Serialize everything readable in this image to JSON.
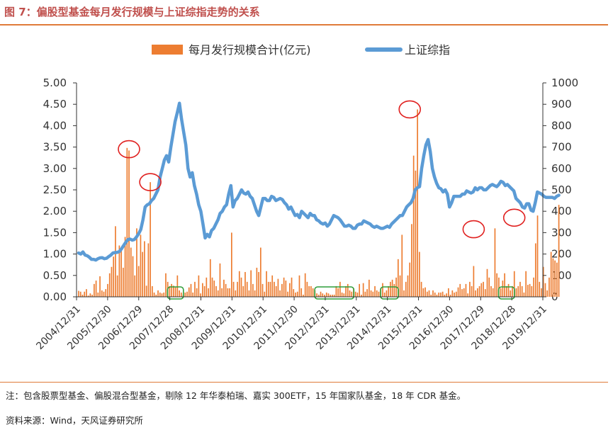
{
  "figure": {
    "title": "图 7：偏股型基金每月发行规模与上证综指走势的关系",
    "note": "注：包含股票型基金、偏股混合型基金，剔除 12 年华泰柏瑞、嘉实 300ETF，15 年国家队基金，18 年 CDR 基金。",
    "source": "资料来源：Wind，天风证券研究所"
  },
  "chart_data": {
    "type": "bar+line",
    "legend": [
      "每月发行规模合计(亿元)",
      "上证综指"
    ],
    "legend_position": "top-center",
    "colors": {
      "bars": "#ed7d31",
      "line": "#5b9bd5",
      "circle": "#e0201f",
      "box": "#2e9e3a",
      "accent": "#e07b39"
    },
    "y_left": {
      "min": 0,
      "max": 5,
      "ticks": [
        "0.00",
        "0.50",
        "1.00",
        "1.50",
        "2.00",
        "2.50",
        "3.00",
        "3.50",
        "4.00",
        "4.50",
        "5.00"
      ]
    },
    "y_right": {
      "min": 0,
      "max": 1000,
      "ticks": [
        "0",
        "100",
        "200",
        "300",
        "400",
        "500",
        "600",
        "700",
        "800",
        "900",
        "1000"
      ]
    },
    "x_ticks": [
      "2004/12/31",
      "2005/12/30",
      "2006/12/29",
      "2007/12/28",
      "2008/12/31",
      "2009/12/31",
      "2010/12/31",
      "2011/12/30",
      "2012/12/31",
      "2013/12/31",
      "2014/12/31",
      "2015/12/31",
      "2016/12/30",
      "2017/12/29",
      "2018/12/28",
      "2019/12/31"
    ],
    "start_month": "2005-01",
    "bars_values": [
      0.14,
      0.12,
      0.05,
      0.12,
      0.18,
      0.03,
      0.08,
      0.05,
      0.3,
      0.38,
      0.1,
      0.48,
      0.15,
      0.12,
      0.18,
      0.3,
      0.55,
      0.7,
      0.94,
      1.65,
      0.5,
      1.2,
      1.08,
      0.68,
      1.4,
      3.48,
      3.42,
      1.15,
      0.95,
      0.5,
      1.6,
      0.72,
      1.45,
      1.05,
      1.3,
      0.26,
      1.25,
      2.68,
      0.25,
      0.1,
      0.05,
      0.15,
      0.1,
      0.08,
      0.1,
      0.55,
      0.35,
      0.25,
      0.3,
      0.26,
      0.22,
      0.5,
      0.15,
      0.1,
      0.05,
      0.1,
      0.12,
      0.22,
      0.3,
      0.1,
      0.35,
      0.2,
      0.5,
      0.08,
      0.32,
      0.25,
      0.45,
      0.2,
      0.88,
      0.45,
      0.38,
      0.25,
      0.15,
      0.78,
      0.2,
      0.4,
      0.3,
      0.2,
      0.2,
      1.5,
      0.35,
      0.15,
      0.35,
      0.6,
      0.45,
      0.25,
      0.58,
      0.35,
      0.15,
      0.62,
      0.3,
      0.15,
      0.68,
      0.58,
      1.15,
      0.3,
      0.12,
      0.6,
      0.35,
      0.35,
      0.5,
      0.35,
      0.25,
      0.42,
      0.15,
      0.3,
      0.45,
      0.38,
      0.12,
      0.32,
      0.45,
      0.18,
      0.1,
      0.12,
      0.5,
      0.2,
      0.05,
      0.55,
      0.35,
      0.25,
      0.25,
      0.2,
      0.15,
      0.08,
      0.05,
      0.12,
      0.08,
      0.05,
      0.1,
      0.08,
      0.05,
      0.05,
      0.05,
      0.25,
      0.2,
      0.35,
      0.1,
      0.08,
      0.25,
      0.3,
      0.15,
      0.12,
      0.2,
      0.12,
      0.1,
      0.3,
      0.05,
      0.32,
      0.12,
      0.18,
      0.4,
      0.15,
      0.12,
      0.25,
      0.15,
      0.12,
      0.2,
      0.32,
      0.1,
      0.15,
      0.25,
      0.35,
      0.4,
      0.3,
      0.45,
      0.88,
      0.5,
      1.45,
      0.15,
      0.35,
      0.5,
      0.8,
      1.7,
      3.3,
      2.95,
      4.38,
      1.05,
      0.35,
      0.2,
      0.22,
      0.12,
      0.15,
      0.05,
      0.15,
      0.1,
      0.05,
      0.1,
      0.1,
      0.12,
      0.05,
      0.08,
      0.2,
      0.05,
      0.15,
      0.1,
      0.12,
      0.22,
      0.3,
      0.18,
      0.2,
      0.3,
      0.08,
      0.35,
      0.25,
      0.72,
      0.15,
      0.2,
      0.25,
      0.32,
      0.35,
      0.18,
      0.65,
      0.45,
      0.25,
      0.2,
      1.6,
      0.55,
      0.45,
      0.2,
      0.38,
      0.55,
      0.25,
      0.3,
      0.15,
      0.25,
      0.6,
      0.2,
      0.25,
      0.35,
      0.25,
      0.1,
      0.6,
      0.28,
      0.3,
      0.25,
      0.45,
      1.25,
      1.9,
      0.35,
      0.2,
      0.7,
      0.32,
      0.15,
      0.45,
      1.05,
      0.9,
      0.85,
      0.8,
      2.15
    ],
    "line_points": [
      [
        0,
        205
      ],
      [
        1,
        200
      ],
      [
        2,
        210
      ],
      [
        3,
        195
      ],
      [
        4,
        192
      ],
      [
        5,
        185
      ],
      [
        6,
        175
      ],
      [
        7,
        175
      ],
      [
        8,
        172
      ],
      [
        9,
        178
      ],
      [
        10,
        182
      ],
      [
        11,
        183
      ],
      [
        12,
        178
      ],
      [
        13,
        180
      ],
      [
        14,
        188
      ],
      [
        15,
        195
      ],
      [
        16,
        205
      ],
      [
        17,
        207
      ],
      [
        18,
        208
      ],
      [
        19,
        212
      ],
      [
        20,
        225
      ],
      [
        21,
        240
      ],
      [
        22,
        255
      ],
      [
        23,
        268
      ],
      [
        24,
        270
      ],
      [
        25,
        265
      ],
      [
        26,
        268
      ],
      [
        27,
        280
      ],
      [
        28,
        295
      ],
      [
        29,
        315
      ],
      [
        30,
        360
      ],
      [
        31,
        420
      ],
      [
        32,
        430
      ],
      [
        33,
        435
      ],
      [
        34,
        450
      ],
      [
        35,
        460
      ],
      [
        36,
        480
      ],
      [
        37,
        500
      ],
      [
        38,
        560
      ],
      [
        39,
        600
      ],
      [
        40,
        640
      ],
      [
        41,
        660
      ],
      [
        42,
        630
      ],
      [
        43,
        700
      ],
      [
        44,
        760
      ],
      [
        45,
        820
      ],
      [
        46,
        860
      ],
      [
        47,
        905
      ],
      [
        48,
        830
      ],
      [
        49,
        770
      ],
      [
        50,
        710
      ],
      [
        51,
        600
      ],
      [
        52,
        560
      ],
      [
        53,
        580
      ],
      [
        54,
        520
      ],
      [
        55,
        480
      ],
      [
        56,
        430
      ],
      [
        57,
        400
      ],
      [
        58,
        340
      ],
      [
        59,
        275
      ],
      [
        60,
        292
      ],
      [
        61,
        280
      ],
      [
        62,
        310
      ],
      [
        63,
        320
      ],
      [
        64,
        340
      ],
      [
        65,
        360
      ],
      [
        66,
        390
      ],
      [
        67,
        400
      ],
      [
        68,
        420
      ],
      [
        69,
        430
      ],
      [
        70,
        480
      ],
      [
        71,
        520
      ],
      [
        72,
        420
      ],
      [
        73,
        450
      ],
      [
        74,
        460
      ],
      [
        75,
        480
      ],
      [
        76,
        500
      ],
      [
        77,
        485
      ],
      [
        78,
        480
      ],
      [
        79,
        490
      ],
      [
        80,
        470
      ],
      [
        81,
        460
      ],
      [
        82,
        430
      ],
      [
        83,
        400
      ],
      [
        84,
        380
      ],
      [
        85,
        420
      ],
      [
        86,
        460
      ],
      [
        87,
        460
      ],
      [
        88,
        450
      ],
      [
        89,
        450
      ],
      [
        90,
        470
      ],
      [
        91,
        465
      ],
      [
        92,
        450
      ],
      [
        93,
        455
      ],
      [
        94,
        460
      ],
      [
        95,
        455
      ],
      [
        96,
        440
      ],
      [
        97,
        430
      ],
      [
        98,
        410
      ],
      [
        99,
        420
      ],
      [
        100,
        400
      ],
      [
        101,
        380
      ],
      [
        102,
        385
      ],
      [
        103,
        370
      ],
      [
        104,
        400
      ],
      [
        105,
        390
      ],
      [
        106,
        380
      ],
      [
        107,
        370
      ],
      [
        108,
        390
      ],
      [
        109,
        380
      ],
      [
        110,
        380
      ],
      [
        111,
        360
      ],
      [
        112,
        355
      ],
      [
        113,
        345
      ],
      [
        114,
        340
      ],
      [
        115,
        345
      ],
      [
        116,
        330
      ],
      [
        117,
        340
      ],
      [
        118,
        360
      ],
      [
        119,
        380
      ],
      [
        120,
        375
      ],
      [
        121,
        370
      ],
      [
        122,
        360
      ],
      [
        123,
        345
      ],
      [
        124,
        330
      ],
      [
        125,
        330
      ],
      [
        126,
        335
      ],
      [
        127,
        330
      ],
      [
        128,
        320
      ],
      [
        129,
        320
      ],
      [
        130,
        335
      ],
      [
        131,
        340
      ],
      [
        132,
        340
      ],
      [
        133,
        355
      ],
      [
        134,
        350
      ],
      [
        135,
        345
      ],
      [
        136,
        340
      ],
      [
        137,
        330
      ],
      [
        138,
        325
      ],
      [
        139,
        330
      ],
      [
        140,
        325
      ],
      [
        141,
        320
      ],
      [
        142,
        320
      ],
      [
        143,
        325
      ],
      [
        144,
        330
      ],
      [
        145,
        325
      ],
      [
        146,
        340
      ],
      [
        147,
        350
      ],
      [
        148,
        360
      ],
      [
        149,
        370
      ],
      [
        150,
        380
      ],
      [
        151,
        380
      ],
      [
        152,
        400
      ],
      [
        153,
        420
      ],
      [
        154,
        430
      ],
      [
        155,
        440
      ],
      [
        156,
        460
      ],
      [
        157,
        500
      ],
      [
        158,
        510
      ],
      [
        159,
        515
      ],
      [
        160,
        600
      ],
      [
        161,
        660
      ],
      [
        162,
        710
      ],
      [
        163,
        735
      ],
      [
        164,
        680
      ],
      [
        165,
        600
      ],
      [
        166,
        560
      ],
      [
        167,
        530
      ],
      [
        168,
        510
      ],
      [
        169,
        505
      ],
      [
        170,
        490
      ],
      [
        171,
        500
      ],
      [
        172,
        480
      ],
      [
        173,
        420
      ],
      [
        174,
        440
      ],
      [
        175,
        470
      ],
      [
        176,
        470
      ],
      [
        177,
        470
      ],
      [
        178,
        470
      ],
      [
        179,
        480
      ],
      [
        180,
        480
      ],
      [
        181,
        495
      ],
      [
        182,
        490
      ],
      [
        183,
        485
      ],
      [
        184,
        490
      ],
      [
        185,
        510
      ],
      [
        186,
        500
      ],
      [
        187,
        510
      ],
      [
        188,
        510
      ],
      [
        189,
        500
      ],
      [
        190,
        500
      ],
      [
        191,
        510
      ],
      [
        192,
        520
      ],
      [
        193,
        525
      ],
      [
        194,
        520
      ],
      [
        195,
        515
      ],
      [
        196,
        525
      ],
      [
        197,
        540
      ],
      [
        198,
        535
      ],
      [
        199,
        520
      ],
      [
        200,
        525
      ],
      [
        201,
        515
      ],
      [
        202,
        505
      ],
      [
        203,
        495
      ],
      [
        204,
        460
      ],
      [
        205,
        450
      ],
      [
        206,
        440
      ],
      [
        207,
        420
      ],
      [
        208,
        415
      ],
      [
        209,
        435
      ],
      [
        210,
        435
      ],
      [
        211,
        405
      ],
      [
        212,
        400
      ],
      [
        213,
        440
      ],
      [
        214,
        490
      ],
      [
        215,
        485
      ],
      [
        216,
        480
      ],
      [
        217,
        470
      ],
      [
        218,
        465
      ],
      [
        219,
        465
      ],
      [
        220,
        465
      ],
      [
        221,
        465
      ],
      [
        222,
        460
      ],
      [
        223,
        470
      ],
      [
        224,
        475
      ]
    ],
    "circles_at": [
      [
        26,
        3.45
      ],
      [
        37,
        2.68
      ],
      [
        171,
        4.38
      ],
      [
        204,
        1.58
      ],
      [
        225,
        1.85
      ]
    ],
    "boxes_at": [
      [
        47,
        53
      ],
      [
        123,
        141
      ],
      [
        157,
        164
      ],
      [
        218,
        224
      ]
    ]
  }
}
